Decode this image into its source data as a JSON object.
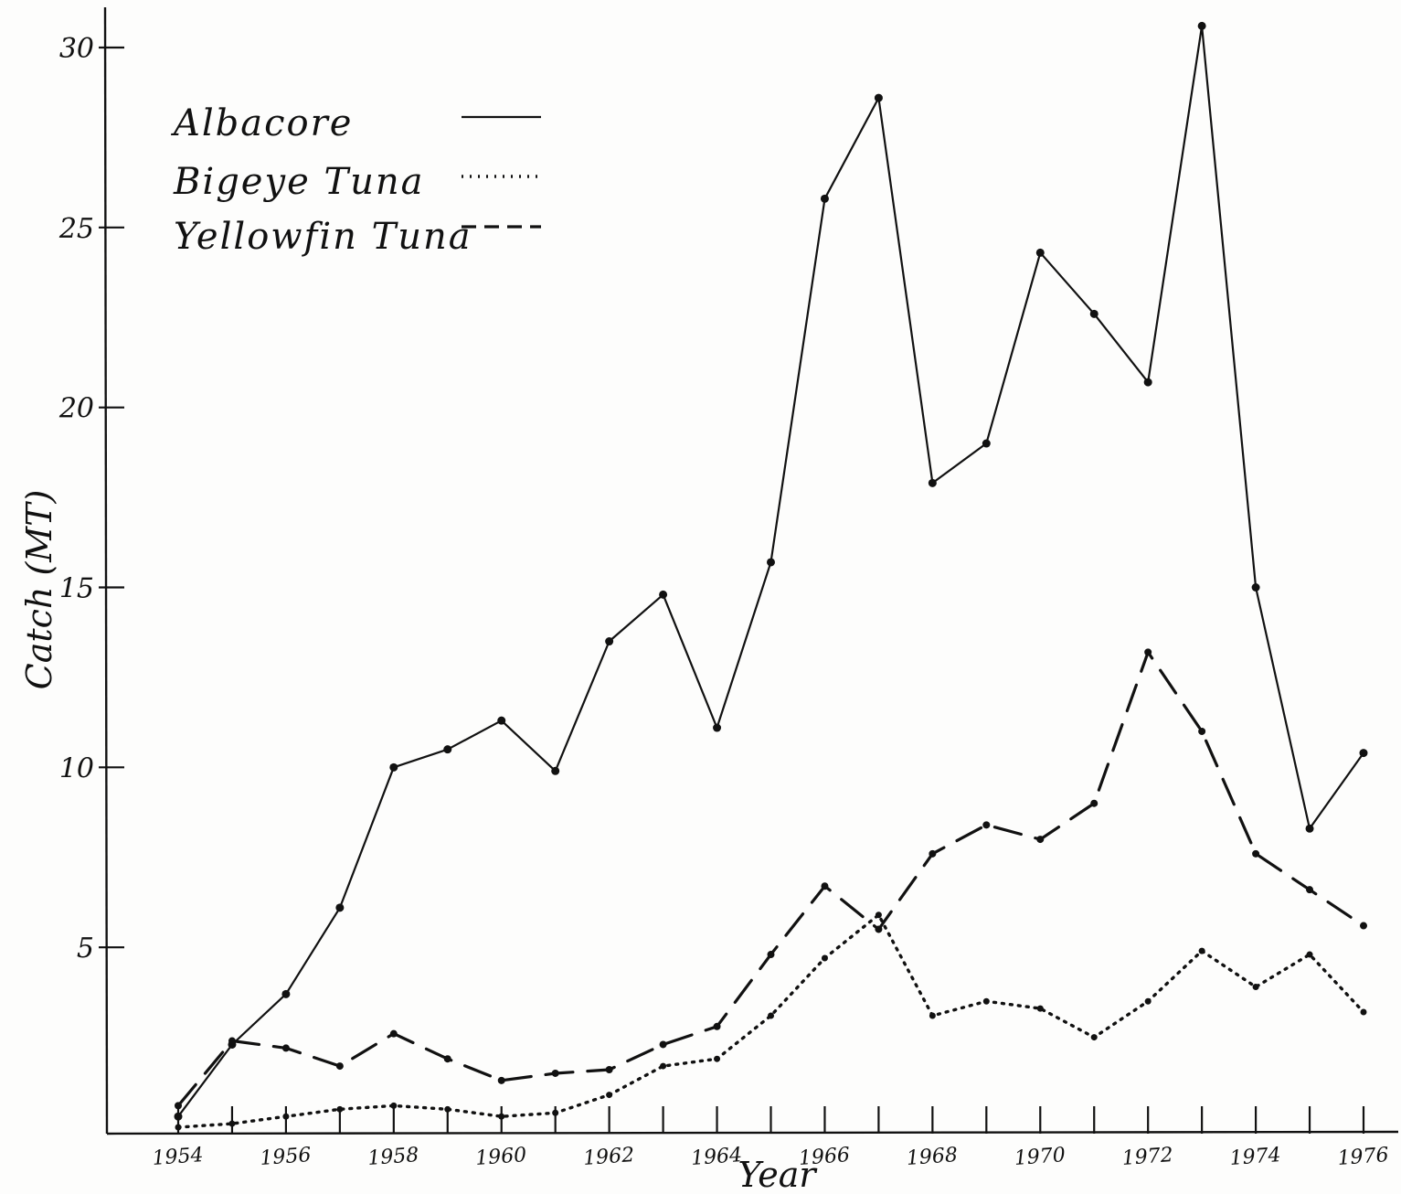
{
  "chart_data": {
    "type": "line",
    "title": "",
    "xlabel": "Year",
    "ylabel": "Catch (MT)",
    "x": [
      1954,
      1955,
      1956,
      1957,
      1958,
      1959,
      1960,
      1961,
      1962,
      1963,
      1964,
      1965,
      1966,
      1967,
      1968,
      1969,
      1970,
      1971,
      1972,
      1973,
      1974,
      1975,
      1976
    ],
    "x_tick_labels": [
      {
        "x": 1954,
        "label": "1954"
      },
      {
        "x": 1956,
        "label": "1956"
      },
      {
        "x": 1958,
        "label": "1958"
      },
      {
        "x": 1960,
        "label": "1960"
      },
      {
        "x": 1962,
        "label": "1962"
      },
      {
        "x": 1964,
        "label": "1964"
      },
      {
        "x": 1966,
        "label": "1966"
      },
      {
        "x": 1968,
        "label": "1968"
      },
      {
        "x": 1970,
        "label": "1970"
      },
      {
        "x": 1972,
        "label": "1972"
      },
      {
        "x": 1974,
        "label": "1974"
      },
      {
        "x": 1976,
        "label": "1976"
      }
    ],
    "y_ticks": [
      5,
      10,
      15,
      20,
      25,
      30
    ],
    "y_tick_labels": [
      "5",
      "10",
      "15",
      "20",
      "25",
      "30"
    ],
    "xlim": [
      1954,
      1976
    ],
    "ylim": [
      0,
      30.5
    ],
    "grid": false,
    "legend_position": "top-left",
    "series": [
      {
        "name": "Albacore",
        "style": "solid",
        "values": [
          0.3,
          2.3,
          3.7,
          6.1,
          10.0,
          10.5,
          11.3,
          9.9,
          13.5,
          14.8,
          11.1,
          15.7,
          25.8,
          28.6,
          17.9,
          19.0,
          24.3,
          22.6,
          20.7,
          30.6,
          15.0,
          8.3,
          10.4
        ]
      },
      {
        "name": "Bigeye Tuna",
        "style": "dotted",
        "values": [
          0.0,
          0.1,
          0.3,
          0.5,
          0.6,
          0.5,
          0.3,
          0.4,
          0.9,
          1.7,
          1.9,
          3.1,
          4.7,
          5.9,
          3.1,
          3.5,
          3.3,
          2.5,
          3.5,
          4.9,
          3.9,
          4.8,
          3.2
        ]
      },
      {
        "name": "Yellowfin Tuna",
        "style": "dashed",
        "values": [
          0.6,
          2.4,
          2.2,
          1.7,
          2.6,
          1.9,
          1.3,
          1.5,
          1.6,
          2.3,
          2.8,
          4.8,
          6.7,
          5.5,
          7.6,
          8.4,
          8.0,
          9.0,
          13.2,
          11.0,
          7.6,
          6.6,
          5.6
        ]
      }
    ]
  }
}
